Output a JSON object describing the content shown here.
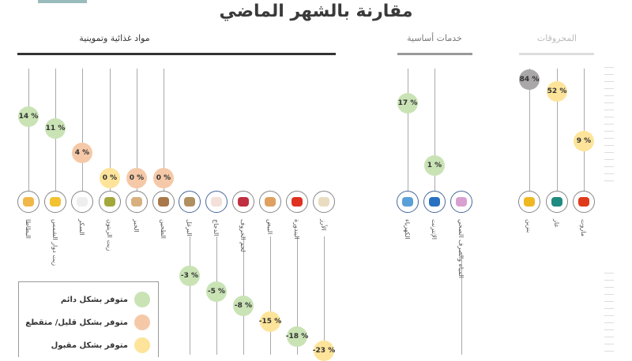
{
  "title": "مقارنة بالشهر الماضي",
  "colors": {
    "green": "#c9e3b5",
    "orange": "#f5c9a8",
    "yellow": "#fde49a",
    "gray": "#a9a7a7"
  },
  "sections": [
    {
      "name": "مواد غذائية وتموينية",
      "items": [
        {
          "label": "البطاطا",
          "value": "14 %",
          "status": "green",
          "icon": "potato-icon",
          "c": "#f0b84a"
        },
        {
          "label": "زيت دوار الشمس",
          "value": "11 %",
          "status": "green",
          "icon": "sunflower-oil-icon",
          "c": "#f2c230"
        },
        {
          "label": "السكر",
          "value": "4 %",
          "status": "orange",
          "icon": "sugar-icon",
          "c": "#eee"
        },
        {
          "label": "زيت الزيتون",
          "value": "0 %",
          "status": "yellow",
          "icon": "olive-oil-icon",
          "c": "#a3a83a"
        },
        {
          "label": "الخبز",
          "value": "0 %",
          "status": "orange",
          "icon": "bread-icon",
          "c": "#d8b080"
        },
        {
          "label": "الطحين",
          "value": "0 %",
          "status": "orange",
          "icon": "flour-icon",
          "c": "#a8784a"
        },
        {
          "label": "البرغل",
          "value": "-3 %",
          "status": "green",
          "icon": "bulgur-icon",
          "c": "#b09060"
        },
        {
          "label": "الدجاج",
          "value": "-5 %",
          "status": "green",
          "icon": "chicken-icon",
          "c": "#f3e0d8"
        },
        {
          "label": "لحم الخروف",
          "value": "-8 %",
          "status": "green",
          "icon": "lamb-meat-icon",
          "c": "#c03040"
        },
        {
          "label": "البيض",
          "value": "-15 %",
          "status": "yellow",
          "icon": "egg-icon",
          "c": "#e0a060"
        },
        {
          "label": "البندورة",
          "value": "-18 %",
          "status": "green",
          "icon": "tomato-icon",
          "c": "#e03020"
        },
        {
          "label": "الأرز",
          "value": "-23 %",
          "status": "yellow",
          "icon": "rice-icon",
          "c": "#eadcc0"
        }
      ]
    },
    {
      "name": "خدمات أساسية",
      "items": [
        {
          "label": "الكهرباء",
          "value": "17 %",
          "status": "green",
          "icon": "electricity-icon",
          "c": "#5aa0d8"
        },
        {
          "label": "الإنترنت",
          "value": "1 %",
          "status": "green",
          "icon": "internet-icon",
          "c": "#2a70c0"
        },
        {
          "label": "المياه والصرف الصحي",
          "value": null,
          "status": null,
          "icon": "water-pipe-icon",
          "c": "#d8a0d0"
        }
      ]
    },
    {
      "name": "المحروقات",
      "items": [
        {
          "label": "بنزين",
          "value": "84 %",
          "status": "gray",
          "icon": "gasoline-icon",
          "c": "#f0b820"
        },
        {
          "label": "غاز",
          "value": "52 %",
          "status": "yellow",
          "icon": "gas-cylinder-icon",
          "c": "#1f8a80"
        },
        {
          "label": "مازوت",
          "value": "9 %",
          "status": "yellow",
          "icon": "diesel-icon",
          "c": "#e03a1a"
        }
      ]
    }
  ],
  "legend": [
    {
      "label": "متوفر بشكل دائم",
      "status": "green"
    },
    {
      "label": "متوفر بشكل قليل/ متقطع",
      "status": "orange"
    },
    {
      "label": "متوفر بشكل مقبول",
      "status": "yellow"
    }
  ]
}
